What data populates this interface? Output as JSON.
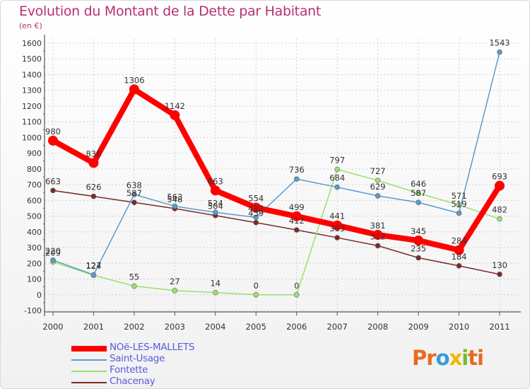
{
  "title": "Evolution du Montant de la Dette par Habitant",
  "subtitle": "(en €)",
  "brand": {
    "letters": [
      "Pr",
      "o",
      "x",
      "i",
      "ti"
    ]
  },
  "colors": {
    "title": "#b5306e",
    "legend_text": "#5a5ae0",
    "grid": "#d0d0d0"
  },
  "chart_data": {
    "type": "line",
    "categories": [
      "2000",
      "2001",
      "2002",
      "2003",
      "2004",
      "2005",
      "2006",
      "2007",
      "2008",
      "2009",
      "2010",
      "2011"
    ],
    "ylim": [
      -100,
      1600
    ],
    "yticks": [
      -100,
      0,
      100,
      200,
      300,
      400,
      500,
      600,
      700,
      800,
      900,
      1000,
      1100,
      1200,
      1300,
      1400,
      1500,
      1600
    ],
    "grid": "horizontal dashed",
    "legend_position": "bottom-left",
    "series": [
      {
        "name": "NOë-LES-MALLETS",
        "color": "#ff0000",
        "values": [
          980,
          838,
          1306,
          1142,
          663,
          554,
          499,
          441,
          381,
          345,
          284,
          693
        ]
      },
      {
        "name": "Saint-Usage",
        "color": "#5b9bc9",
        "values": [
          220,
          127,
          638,
          563,
          524,
          492,
          736,
          684,
          629,
          587,
          519,
          1543
        ]
      },
      {
        "name": "Fontette",
        "color": "#99e070",
        "values": [
          209,
          124,
          55,
          27,
          14,
          0,
          0,
          797,
          727,
          646,
          571,
          482
        ]
      },
      {
        "name": "Chacenay",
        "color": "#7a2a2a",
        "values": [
          663,
          626,
          587,
          548,
          504,
          459,
          412,
          363,
          312,
          235,
          184,
          130
        ]
      }
    ]
  }
}
